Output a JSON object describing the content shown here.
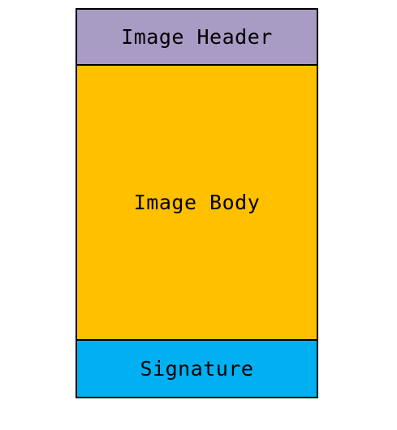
{
  "sections": {
    "header": {
      "label": "Image Header",
      "color": "#a89bc4"
    },
    "body": {
      "label": "Image Body",
      "color": "#ffc000"
    },
    "signature": {
      "label": "Signature",
      "color": "#00b0f0"
    }
  }
}
